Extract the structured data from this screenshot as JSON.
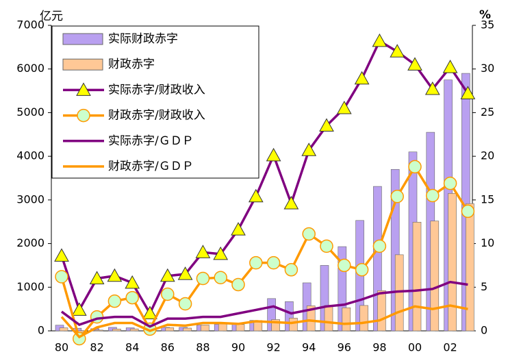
{
  "chart_data": {
    "type": "bar",
    "y_label": "亿元",
    "y2_label": "%",
    "categories": [
      "80",
      null,
      "82",
      null,
      "84",
      null,
      "86",
      null,
      "88",
      null,
      "90",
      null,
      "92",
      null,
      "94",
      null,
      "96",
      null,
      "98",
      null,
      "00",
      null,
      "02",
      null
    ],
    "ylim": [
      0,
      7000
    ],
    "yticks": [
      0,
      1000,
      2000,
      3000,
      4000,
      5000,
      6000,
      7000
    ],
    "y2lim": [
      0,
      35
    ],
    "y2ticks": [
      0,
      5,
      10,
      15,
      20,
      25,
      30,
      35
    ],
    "legend": "top-left",
    "series": [
      {
        "name": "实际财政赤字",
        "type": "bar",
        "color": "#b9a0f0",
        "values": [
          130,
          60,
          50,
          80,
          70,
          20,
          80,
          80,
          130,
          150,
          150,
          240,
          740,
          670,
          1100,
          1500,
          1930,
          2530,
          3310,
          3700,
          4100,
          4550,
          5750,
          5900
        ]
      },
      {
        "name": "财政赤字",
        "type": "bar",
        "color": "#ffc896",
        "values": [
          69,
          -37,
          18,
          43,
          45,
          -1,
          71,
          63,
          134,
          159,
          146,
          237,
          259,
          293,
          574,
          582,
          530,
          582,
          922,
          1744,
          2491,
          2517,
          3150,
          2916
        ]
      },
      {
        "name": "实际赤字/财政收入",
        "type": "line",
        "axis": "y2",
        "color": "#800080",
        "marker": "triangle",
        "marker_color": "#ffff00",
        "values": [
          8.6,
          2.4,
          6.0,
          6.3,
          5.5,
          2.0,
          6.3,
          6.5,
          9.0,
          8.8,
          11.6,
          15.4,
          20.1,
          14.6,
          20.7,
          23.5,
          25.5,
          28.9,
          33.2,
          32.0,
          30.5,
          27.7,
          30.2,
          27.2
        ]
      },
      {
        "name": "财政赤字/财政收入",
        "type": "line",
        "axis": "y2",
        "color": "#ff9900",
        "marker": "circle",
        "marker_color": "#ccffcc",
        "values": [
          6.2,
          -0.9,
          1.6,
          3.4,
          3.8,
          0.2,
          4.2,
          3.1,
          6.0,
          6.1,
          5.3,
          7.8,
          7.8,
          7.0,
          11.1,
          9.7,
          7.5,
          7.0,
          9.7,
          15.4,
          18.8,
          15.5,
          16.9,
          13.7
        ]
      },
      {
        "name": "实际赤字/ＧＤＰ",
        "type": "line",
        "axis": "y2",
        "color": "#800080",
        "values": [
          2.2,
          0.7,
          1.4,
          1.6,
          1.6,
          0.5,
          1.4,
          1.4,
          1.6,
          1.6,
          2.0,
          2.4,
          2.8,
          2.0,
          2.4,
          2.8,
          3.0,
          3.6,
          4.3,
          4.5,
          4.6,
          4.8,
          5.6,
          5.3
        ]
      },
      {
        "name": "财政赤字/ＧＤＰ",
        "type": "line",
        "axis": "y2",
        "color": "#ff9900",
        "values": [
          1.6,
          -0.7,
          0.4,
          0.9,
          0.9,
          0.0,
          0.7,
          0.6,
          0.9,
          0.9,
          0.8,
          1.1,
          1.0,
          0.9,
          1.2,
          1.0,
          0.8,
          0.9,
          1.2,
          2.1,
          2.8,
          2.5,
          2.9,
          2.5
        ]
      }
    ]
  }
}
